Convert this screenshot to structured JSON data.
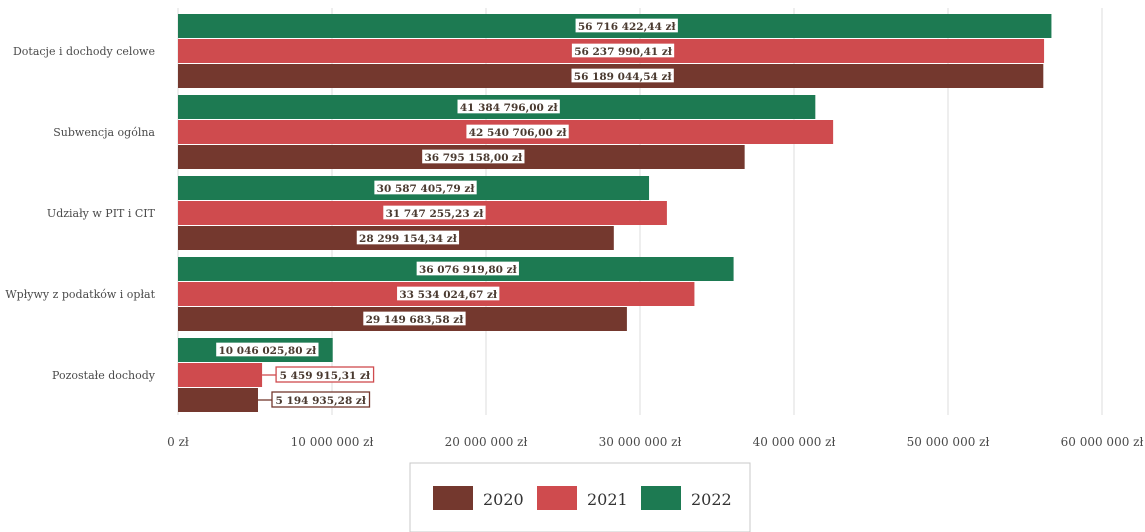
{
  "chart_data": {
    "type": "bar",
    "orientation": "horizontal",
    "categories": [
      "Dotacje i dochody celowe",
      "Subwencja ogólna",
      "Udziały w PIT i CIT",
      "Wpływy z podatków i opłat",
      "Pozostałe dochody"
    ],
    "series": [
      {
        "name": "2022",
        "color": "#1d7a52",
        "values": [
          56716422.44,
          41384796.0,
          30587405.79,
          36076919.8,
          10046025.8
        ],
        "labels": [
          "56 716 422,44 zł",
          "41 384 796,00 zł",
          "30 587 405,79 zł",
          "36 076 919,80 zł",
          "10 046 025,80 zł"
        ]
      },
      {
        "name": "2021",
        "color": "#cf4b4e",
        "values": [
          56237990.41,
          42540706.0,
          31747255.23,
          33534024.67,
          5459915.31
        ],
        "labels": [
          "56 237 990,41 zł",
          "42 540 706,00 zł",
          "31 747 255,23 zł",
          "33 534 024,67 zł",
          "5 459 915,31 zł"
        ]
      },
      {
        "name": "2020",
        "color": "#74382e",
        "values": [
          56189044.54,
          36795158.0,
          28299154.34,
          29149683.58,
          5194935.28
        ],
        "labels": [
          "56 189 044,54 zł",
          "36 795 158,00 zł",
          "28 299 154,34 zł",
          "29 149 683,58 zł",
          "5 194 935,28 zł"
        ]
      }
    ],
    "xlim": [
      0,
      60000000
    ],
    "xticks": [
      0,
      10000000,
      20000000,
      30000000,
      40000000,
      50000000,
      60000000
    ],
    "xtick_labels": [
      "0 zł",
      "10 000 000 zł",
      "20 000 000 zł",
      "30 000 000 zł",
      "40 000 000 zł",
      "50 000 000 zł",
      "60 000 000 zł"
    ],
    "grid": true,
    "legend": {
      "position": "bottom",
      "items": [
        {
          "name": "2020",
          "color": "#74382e"
        },
        {
          "name": "2021",
          "color": "#cf4b4e"
        },
        {
          "name": "2022",
          "color": "#1d7a52"
        }
      ]
    }
  }
}
